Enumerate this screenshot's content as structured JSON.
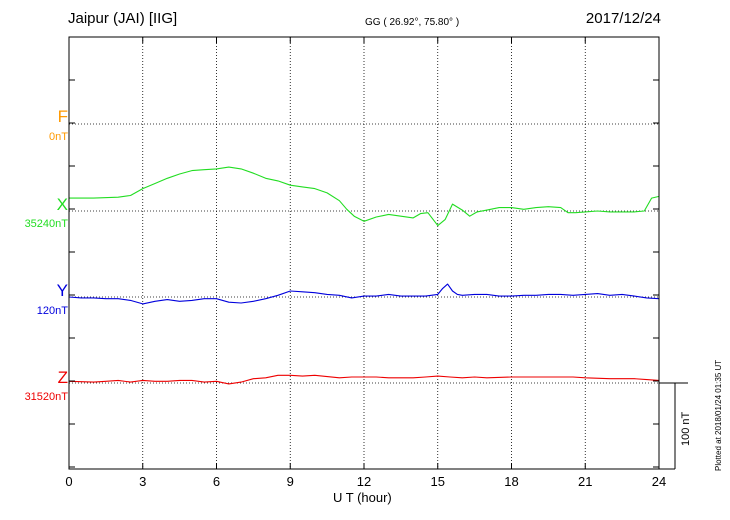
{
  "header": {
    "station": "Jaipur (JAI)  [IIG]",
    "coords": "GG ( 26.92°,  75.80° )",
    "date": "2017/12/24"
  },
  "chart_data": {
    "type": "line",
    "xlabel": "U T (hour)",
    "xlim": [
      0,
      24
    ],
    "xticks": [
      "0",
      "3",
      "6",
      "9",
      "12",
      "15",
      "18",
      "21",
      "24"
    ],
    "grid": true,
    "scale_bar_label": "100 nT",
    "scale_bar_nT": 100,
    "series": [
      {
        "name": "F",
        "baseline_label": "0nT",
        "color": "#ff9900",
        "x": [],
        "y": []
      },
      {
        "name": "X",
        "baseline_label": "35240nT",
        "color": "#22dd22",
        "x": [
          0,
          1,
          2,
          2.5,
          3,
          3.5,
          4,
          4.5,
          5,
          5.5,
          6,
          6.5,
          7,
          7.5,
          8,
          8.5,
          9,
          9.5,
          10,
          10.5,
          11,
          11.3,
          11.6,
          12,
          12.5,
          13,
          13.5,
          14,
          14.3,
          14.6,
          15,
          15.3,
          15.6,
          16,
          16.3,
          16.6,
          17,
          17.5,
          18,
          18.5,
          19,
          19.5,
          20,
          20.3,
          20.6,
          21,
          21.5,
          22,
          22.5,
          23,
          23.4,
          23.7,
          24
        ],
        "y": [
          15,
          15,
          16,
          18,
          26,
          32,
          38,
          43,
          47,
          48,
          49,
          51,
          49,
          44,
          38,
          35,
          30,
          28,
          26,
          21,
          12,
          2,
          -6,
          -12,
          -7,
          -4,
          -6,
          -8,
          -3,
          -2,
          -17,
          -10,
          8,
          1,
          -6,
          -1,
          1,
          4,
          4,
          2,
          4,
          5,
          4,
          -2,
          -2,
          -1,
          0,
          -1,
          -1,
          -1,
          0,
          15,
          17
        ]
      },
      {
        "name": "Y",
        "baseline_label": "120nT",
        "color": "#0000dd",
        "x": [
          0,
          0.5,
          1,
          1.5,
          2,
          2.5,
          3,
          3.5,
          4,
          4.5,
          5,
          5.5,
          6,
          6.5,
          7,
          7.5,
          8,
          8.5,
          9,
          9.5,
          10,
          10.5,
          11,
          11.5,
          12,
          12.5,
          13,
          13.5,
          14,
          14.5,
          15,
          15.2,
          15.4,
          15.6,
          15.8,
          16,
          16.5,
          17,
          17.5,
          18,
          18.5,
          19,
          19.5,
          20,
          20.5,
          21,
          21.5,
          22,
          22.5,
          23,
          23.5,
          24
        ],
        "y": [
          0,
          -1,
          -1,
          -2,
          -2,
          -4,
          -8,
          -5,
          -3,
          -5,
          -4,
          -2,
          -2,
          -6,
          -7,
          -5,
          -2,
          2,
          7,
          6,
          5,
          3,
          2,
          -1,
          1,
          1,
          3,
          1,
          1,
          1,
          3,
          10,
          15,
          7,
          3,
          2,
          3,
          3,
          1,
          1,
          2,
          2,
          3,
          3,
          2,
          3,
          4,
          2,
          3,
          1,
          -1,
          -2
        ]
      },
      {
        "name": "Z",
        "baseline_label": "31520nT",
        "color": "#ee0000",
        "x": [
          0,
          1,
          1.5,
          2,
          2.5,
          3,
          3.5,
          4,
          4.5,
          5,
          5.5,
          6,
          6.5,
          7,
          7.5,
          8,
          8.5,
          9,
          9.5,
          10,
          11,
          11.5,
          12,
          12.5,
          13,
          14,
          14.5,
          15,
          15.5,
          16,
          16.5,
          17,
          18,
          19,
          20,
          20.5,
          21,
          22,
          23,
          23.5,
          24
        ],
        "y": [
          2,
          1,
          2,
          3,
          1,
          3,
          2,
          2,
          3,
          3,
          1,
          2,
          -1,
          1,
          5,
          6,
          9,
          9,
          8,
          9,
          6,
          7,
          7,
          7,
          6,
          6,
          7,
          8,
          7,
          6,
          7,
          6,
          7,
          7,
          7,
          7,
          6,
          5,
          5,
          4,
          3
        ]
      }
    ]
  },
  "footer": {
    "plotted": "Plotted at 2018/01/24 01:35 UT"
  }
}
